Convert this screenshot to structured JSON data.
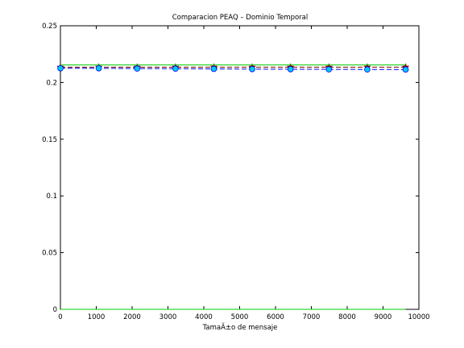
{
  "chart_data": {
    "type": "line",
    "title": "Comparacion PEAQ – Dominio Temporal",
    "xlabel": "TamaÃ±o de mensaje",
    "ylabel": "",
    "xlim": [
      0,
      10000
    ],
    "ylim": [
      0,
      0.25
    ],
    "xticks": [
      "0",
      "1000",
      "2000",
      "3000",
      "4000",
      "5000",
      "6000",
      "7000",
      "8000",
      "9000",
      "10000"
    ],
    "yticks": [
      "0",
      "0.05",
      "0.1",
      "0.15",
      "0.2",
      "0.25"
    ],
    "grid": false,
    "x": [
      0,
      1070,
      2140,
      3210,
      4280,
      5350,
      6420,
      7490,
      8560,
      9630
    ],
    "series": [
      {
        "color": "#8b0000",
        "line": "dashed",
        "marker": "star",
        "values": [
          0.2135,
          0.2135,
          0.2135,
          0.2135,
          0.2135,
          0.2135,
          0.2135,
          0.2135,
          0.2135,
          0.2135
        ]
      },
      {
        "color": "#00cc00",
        "line": "solid",
        "marker": "none",
        "values": [
          0.2155,
          0.2155,
          0.2155,
          0.2155,
          0.2155,
          0.2155,
          0.2155,
          0.2155,
          0.2155,
          0.2155
        ]
      },
      {
        "color": "#0000ff",
        "line": "dashed",
        "marker": "circle",
        "marker_fill": "#00ccee",
        "values": [
          0.2125,
          0.2125,
          0.2123,
          0.2122,
          0.212,
          0.2118,
          0.2117,
          0.2116,
          0.2115,
          0.2114
        ]
      },
      {
        "color": "#00cc00",
        "line": "solid",
        "marker": "none",
        "values": [
          0,
          0,
          0,
          0,
          0,
          0,
          0,
          0,
          0,
          0
        ]
      }
    ]
  }
}
